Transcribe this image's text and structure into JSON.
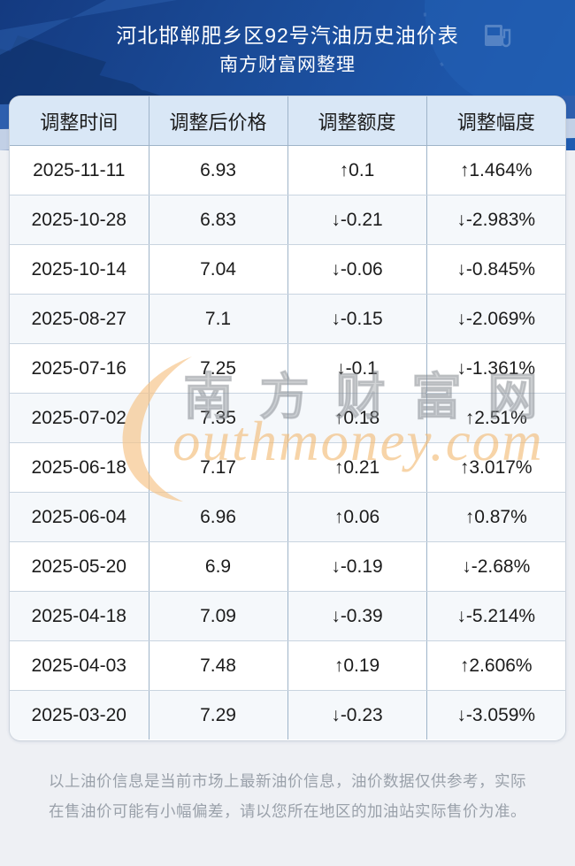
{
  "header": {
    "title": "河北邯郸肥乡区92号汽油历史油价表",
    "subtitle": "南方财富网整理"
  },
  "table": {
    "columns": [
      "调整时间",
      "调整后价格",
      "调整额度",
      "调整幅度"
    ],
    "rows": [
      {
        "date": "2025-11-11",
        "price": "6.93",
        "amount": "↑0.1",
        "percent": "↑1.464%",
        "direction": "up"
      },
      {
        "date": "2025-10-28",
        "price": "6.83",
        "amount": "↓-0.21",
        "percent": "↓-2.983%",
        "direction": "down"
      },
      {
        "date": "2025-10-14",
        "price": "7.04",
        "amount": "↓-0.06",
        "percent": "↓-0.845%",
        "direction": "down"
      },
      {
        "date": "2025-08-27",
        "price": "7.1",
        "amount": "↓-0.15",
        "percent": "↓-2.069%",
        "direction": "down"
      },
      {
        "date": "2025-07-16",
        "price": "7.25",
        "amount": "↓-0.1",
        "percent": "↓-1.361%",
        "direction": "down"
      },
      {
        "date": "2025-07-02",
        "price": "7.35",
        "amount": "↑0.18",
        "percent": "↑2.51%",
        "direction": "up"
      },
      {
        "date": "2025-06-18",
        "price": "7.17",
        "amount": "↑0.21",
        "percent": "↑3.017%",
        "direction": "up"
      },
      {
        "date": "2025-06-04",
        "price": "6.96",
        "amount": "↑0.06",
        "percent": "↑0.87%",
        "direction": "up"
      },
      {
        "date": "2025-05-20",
        "price": "6.9",
        "amount": "↓-0.19",
        "percent": "↓-2.68%",
        "direction": "down"
      },
      {
        "date": "2025-04-18",
        "price": "7.09",
        "amount": "↓-0.39",
        "percent": "↓-5.214%",
        "direction": "down"
      },
      {
        "date": "2025-04-03",
        "price": "7.48",
        "amount": "↑0.19",
        "percent": "↑2.606%",
        "direction": "up"
      },
      {
        "date": "2025-03-20",
        "price": "7.29",
        "amount": "↓-0.23",
        "percent": "↓-3.059%",
        "direction": "down"
      }
    ]
  },
  "watermark": {
    "brand_initial": "S",
    "brand_cn": "南方财富网",
    "brand_en": "outhmoney.com"
  },
  "footer": {
    "note": "以上油价信息是当前市场上最新油价信息，油价数据仅供参考，实际在售油价可能有小幅偏差，请以您所在地区的加油站实际售价为准。"
  },
  "colors": {
    "up": "#fb0b0b",
    "down": "#008000",
    "header_bg": "#1b4c9b",
    "table_header_bg": "#d9e7f6"
  }
}
